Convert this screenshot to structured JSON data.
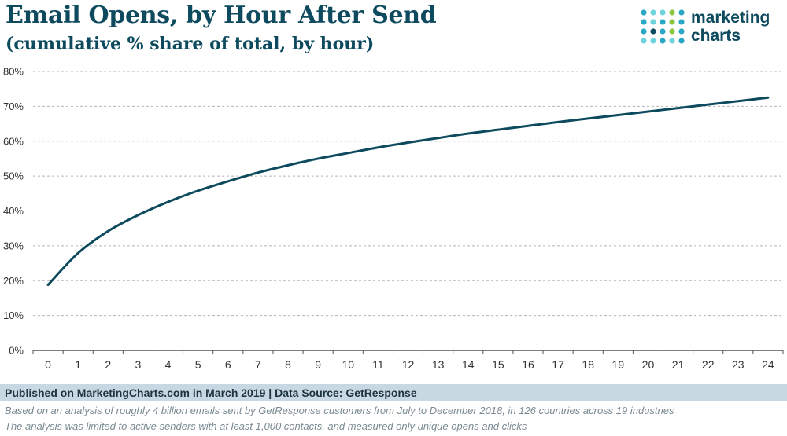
{
  "header": {
    "title": "Email Opens, by Hour After Send",
    "subtitle": "(cumulative % share of total, by hour)"
  },
  "logo": {
    "line1": "marketing",
    "line2": "charts",
    "dot_colors": [
      "#2aa6c6",
      "#8cc63f",
      "#0d4a5e",
      "#6fd3dc"
    ]
  },
  "footer": {
    "published": "Published on MarketingCharts.com in March 2019 | Data Source: GetResponse",
    "note1": "Based on an analysis of roughly 4 billion emails sent by GetResponse customers from July to December 2018, in 126 countries across 19 industries",
    "note2": "The analysis was limited to active senders with at least 1,000 contacts, and measured only unique opens and clicks"
  },
  "chart_data": {
    "type": "line",
    "title": "Email Opens, by Hour After Send",
    "subtitle": "(cumulative % share of total, by hour)",
    "xlabel": "",
    "ylabel": "",
    "x": [
      0,
      1,
      2,
      3,
      4,
      5,
      6,
      7,
      8,
      9,
      10,
      11,
      12,
      13,
      14,
      15,
      16,
      17,
      18,
      19,
      20,
      21,
      22,
      23,
      24
    ],
    "y_ticks": [
      "0%",
      "10%",
      "20%",
      "30%",
      "40%",
      "50%",
      "60%",
      "70%",
      "80%"
    ],
    "ylim": [
      0,
      80
    ],
    "grid": true,
    "series": [
      {
        "color": "#0d4a5e",
        "values": [
          18.8,
          27.9,
          34.2,
          38.8,
          42.6,
          45.8,
          48.5,
          51.0,
          53.1,
          55.0,
          56.6,
          58.2,
          59.6,
          60.9,
          62.2,
          63.3,
          64.4,
          65.5,
          66.5,
          67.5,
          68.5,
          69.5,
          70.5,
          71.5,
          72.5
        ]
      }
    ]
  }
}
